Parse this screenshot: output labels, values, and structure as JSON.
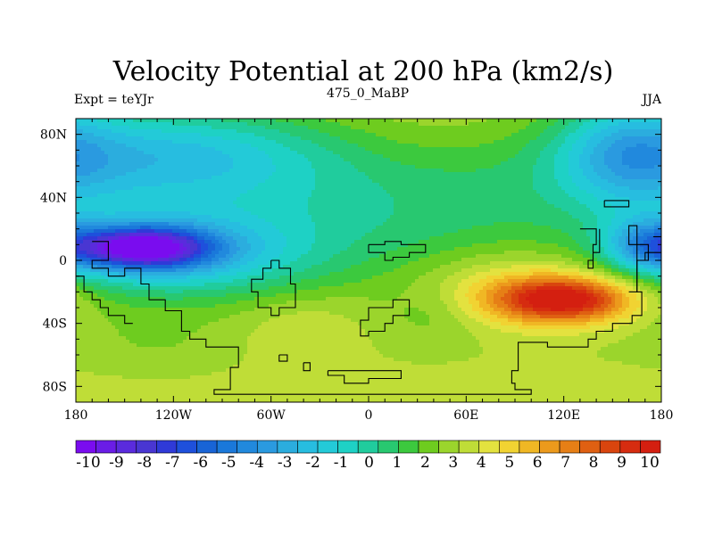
{
  "chart_data": {
    "type": "heatmap",
    "title": "Velocity Potential at 200 hPa (km2/s)",
    "subtitle_left": "Expt = teYJr",
    "subtitle_center": "475_0_MaBP",
    "subtitle_right": "JJA",
    "xlim": [
      -180,
      180
    ],
    "ylim": [
      -90,
      90
    ],
    "x_ticks": [
      {
        "value": -180,
        "label": "180"
      },
      {
        "value": -120,
        "label": "120W"
      },
      {
        "value": -60,
        "label": "60W"
      },
      {
        "value": 0,
        "label": "0"
      },
      {
        "value": 60,
        "label": "60E"
      },
      {
        "value": 120,
        "label": "120E"
      },
      {
        "value": 180,
        "label": "180"
      }
    ],
    "y_ticks": [
      {
        "value": 80,
        "label": "80N"
      },
      {
        "value": 40,
        "label": "40N"
      },
      {
        "value": 0,
        "label": "0"
      },
      {
        "value": -40,
        "label": "40S"
      },
      {
        "value": -80,
        "label": "80S"
      }
    ],
    "colorbar": {
      "levels": [
        -10,
        -9,
        -8,
        -7,
        -6,
        -5,
        -4,
        -3,
        -2,
        -1,
        0,
        1,
        2,
        3,
        4,
        5,
        6,
        7,
        8,
        9,
        10
      ],
      "labels": [
        "-10",
        "-9",
        "-8",
        "-7",
        "-6",
        "-5",
        "-4",
        "-3",
        "-2",
        "-1",
        "0",
        "1",
        "2",
        "3",
        "4",
        "5",
        "6",
        "7",
        "8",
        "9",
        "10"
      ],
      "colors": [
        "#7a0cef",
        "#6a1de6",
        "#5a2bdd",
        "#4936d2",
        "#2f3ad8",
        "#1e50dc",
        "#1864d6",
        "#1a78da",
        "#2189dd",
        "#2a9ae0",
        "#2badde",
        "#27bde0",
        "#23cad8",
        "#1ed1c5",
        "#20cc9d",
        "#28c870",
        "#3cc93e",
        "#6ecc1f",
        "#9bd52c",
        "#bfdd37",
        "#e3e23f",
        "#f1d332",
        "#f0b724",
        "#ec9a1c",
        "#e67f16",
        "#df6012",
        "#d9450e",
        "#d62c10",
        "#d41f10"
      ]
    },
    "field": {
      "description": "velocity potential anomaly field, km2/s, composed of gaussian centres",
      "background": 2.7,
      "centers": [
        {
          "lon": -140,
          "lat": 8,
          "amp": -9.0,
          "sx": 28,
          "sy": 9
        },
        {
          "lon": -120,
          "lat": 5,
          "amp": -4.5,
          "sx": 55,
          "sy": 18
        },
        {
          "lon": -160,
          "lat": 65,
          "amp": -3.5,
          "sx": 70,
          "sy": 25
        },
        {
          "lon": -90,
          "lat": 70,
          "amp": -2.0,
          "sx": 60,
          "sy": 20
        },
        {
          "lon": 170,
          "lat": 10,
          "amp": -3.5,
          "sx": 18,
          "sy": 12
        },
        {
          "lon": 160,
          "lat": 70,
          "amp": -3.5,
          "sx": 30,
          "sy": 25
        },
        {
          "lon": 0,
          "lat": 40,
          "amp": -2.0,
          "sx": 90,
          "sy": 30
        },
        {
          "lon": 120,
          "lat": -25,
          "amp": 6.5,
          "sx": 30,
          "sy": 10
        },
        {
          "lon": 95,
          "lat": -18,
          "amp": 2.5,
          "sx": 45,
          "sy": 18
        },
        {
          "lon": 40,
          "lat": -35,
          "amp": -0.8,
          "sx": 20,
          "sy": 12
        },
        {
          "lon": -40,
          "lat": -40,
          "amp": 1.0,
          "sx": 30,
          "sy": 15
        },
        {
          "lon": -130,
          "lat": -55,
          "amp": -0.5,
          "sx": 30,
          "sy": 12
        }
      ]
    },
    "coastlines": "approximate paleo-continent outlines (Late Ordovician, 475 Ma)"
  }
}
